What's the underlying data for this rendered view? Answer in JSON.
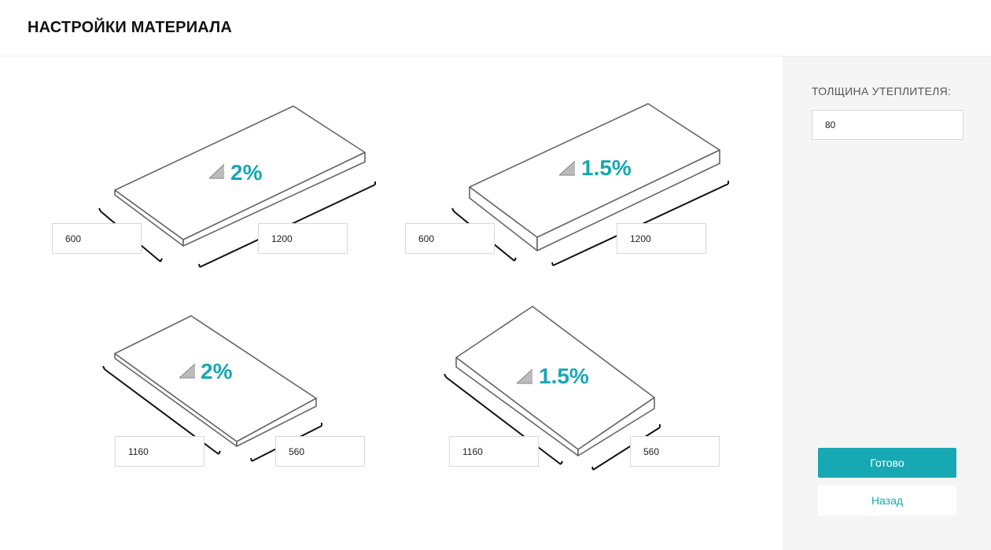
{
  "header": {
    "title": "НАСТРОЙКИ МАТЕРИАЛА"
  },
  "boards": [
    {
      "slope": "2%",
      "width": "600",
      "length": "1200"
    },
    {
      "slope": "1.5%",
      "width": "600",
      "length": "1200"
    },
    {
      "slope": "2%",
      "width": "1160",
      "length": "560"
    },
    {
      "slope": "1.5%",
      "width": "1160",
      "length": "560"
    }
  ],
  "panel": {
    "thickness_label": "ТОЛЩИНА УТЕПЛИТЕЛЯ:",
    "thickness_value": "80",
    "done_label": "Готово",
    "back_label": "Назад"
  },
  "colors": {
    "accent": "#16a8b3",
    "panel_bg": "#f5f5f5",
    "outline": "#666666"
  },
  "icons": {
    "slope": "slope-triangle-icon"
  }
}
